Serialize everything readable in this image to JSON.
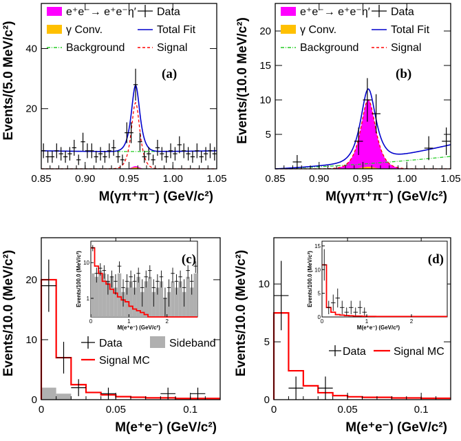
{
  "chart_data": [
    {
      "panel": "a",
      "type": "scatter",
      "panel_label": "(a)",
      "xlabel": "M(γπ⁺π⁻) (GeV/c²)",
      "ylabel": "Events/(5.0 MeV/c²)",
      "xlim": [
        0.85,
        1.05
      ],
      "ylim": [
        0,
        55
      ],
      "xticks": [
        "0.85",
        "0.90",
        "0.95",
        "1.00",
        "1.05"
      ],
      "yticks": [
        "20",
        "40"
      ],
      "legend": [
        "e⁺e⁻→ e⁺e⁻η′",
        "γ Conv.",
        "Background",
        "Data",
        "Total Fit",
        "Signal"
      ],
      "series": [
        {
          "name": "Data",
          "kind": "points",
          "x": [
            0.8525,
            0.8575,
            0.8625,
            0.8675,
            0.8725,
            0.8775,
            0.8825,
            0.8875,
            0.8925,
            0.8975,
            0.9025,
            0.9075,
            0.9125,
            0.9175,
            0.9225,
            0.9275,
            0.9325,
            0.9375,
            0.9425,
            0.9475,
            0.9525,
            0.9575,
            0.9625,
            0.9675,
            0.9725,
            0.9775,
            0.9825,
            0.9875,
            0.9925,
            0.9975,
            1.0025,
            1.0075,
            1.0125,
            1.0175,
            1.0225,
            1.0275,
            1.0325,
            1.0375,
            1.0425,
            1.0475
          ],
          "y": [
            6,
            4,
            4,
            6,
            5,
            4,
            5,
            7,
            3,
            9,
            6,
            6,
            4,
            5,
            4,
            6,
            7,
            4,
            3,
            12,
            12,
            28,
            9,
            4,
            5,
            3,
            7,
            5,
            4,
            6,
            5,
            8,
            6,
            5,
            4,
            6,
            4,
            5,
            6,
            5
          ]
        },
        {
          "name": "Total Fit",
          "kind": "curve",
          "peak_mean": 0.9575,
          "peak_height": 22,
          "peak_width": 0.004,
          "background": [
            6.0,
            5.5,
            6.0
          ]
        },
        {
          "name": "Signal",
          "kind": "curve",
          "peak_mean": 0.9575,
          "peak_height": 22,
          "peak_width": 0.004
        },
        {
          "name": "Background",
          "kind": "curve",
          "background": [
            6.0,
            5.5,
            6.0
          ]
        },
        {
          "name": "e⁺e⁻→ e⁺e⁻η′",
          "kind": "fill",
          "peak_mean": 0.9575,
          "peak_height": 0.6,
          "peak_width": 0.004
        },
        {
          "name": "γ Conv.",
          "kind": "fill",
          "peak_mean": 0.9575,
          "peak_height": 0.5,
          "peak_width": 0.004
        }
      ]
    },
    {
      "panel": "b",
      "type": "scatter",
      "panel_label": "(b)",
      "xlabel": "M(γγπ⁺π⁻) (GeV/c²)",
      "ylabel": "Events/(10.0 MeV/c²)",
      "xlim": [
        0.85,
        1.05
      ],
      "ylim": [
        0,
        24
      ],
      "xticks": [
        "0.85",
        "0.90",
        "0.95",
        "1.00",
        "1.05"
      ],
      "yticks": [
        "5",
        "10",
        "15",
        "20"
      ],
      "legend": [
        "e⁺e⁻→ e⁺e⁻η′",
        "γ Conv.",
        "Background",
        "Data",
        "Total Fit",
        "Signal"
      ],
      "series": [
        {
          "name": "Data",
          "kind": "points",
          "x": [
            0.875,
            0.945,
            0.955,
            0.965,
            1.025,
            1.045
          ],
          "y": [
            1,
            4,
            10,
            8,
            3,
            4
          ],
          "xerr": [
            0.005,
            0.005,
            0.005,
            0.005,
            0.005,
            0.005
          ]
        },
        {
          "name": "Total Fit",
          "kind": "curve",
          "peak_mean": 0.956,
          "peak_height": 10.3,
          "peak_width": 0.007,
          "background": [
            0.0,
            0.6,
            3.5
          ]
        },
        {
          "name": "Signal",
          "kind": "curve",
          "peak_mean": 0.956,
          "peak_height": 10.0,
          "peak_width": 0.007
        },
        {
          "name": "Background",
          "kind": "curve",
          "background": [
            0.0,
            0.5,
            1.8
          ]
        },
        {
          "name": "e⁺e⁻→ e⁺e⁻η′",
          "kind": "fill",
          "peak_mean": 0.956,
          "peak_height": 10.0,
          "peak_width": 0.007
        },
        {
          "name": "γ Conv.",
          "kind": "fill",
          "peak_mean": 0.956,
          "peak_height": 0.3,
          "peak_width": 0.007
        }
      ]
    },
    {
      "panel": "c",
      "type": "bar",
      "panel_label": "(c)",
      "xlabel": "M(e⁺e⁻) (GeV/c²)",
      "ylabel": "Events/10.0 (MeV/c²)",
      "xlim": [
        0,
        0.12
      ],
      "ylim": [
        0,
        27
      ],
      "xticks": [
        "0",
        "0.05",
        "0.1"
      ],
      "yticks": [
        "0",
        "10",
        "20"
      ],
      "legend": [
        "Data",
        "Sideband",
        "Signal MC"
      ],
      "bin_edges": [
        0,
        0.01,
        0.02,
        0.03,
        0.04,
        0.05,
        0.06,
        0.07,
        0.08,
        0.09,
        0.1,
        0.11,
        0.12
      ],
      "series": [
        {
          "name": "Data",
          "kind": "points",
          "x": [
            0.005,
            0.015,
            0.025,
            0.045,
            0.085,
            0.105
          ],
          "y": [
            19,
            7,
            2,
            1,
            1,
            1
          ],
          "xerr": [
            0.005,
            0.005,
            0.005,
            0.005,
            0.005,
            0.005
          ]
        },
        {
          "name": "Signal MC",
          "kind": "step",
          "values": [
            20,
            7,
            2.5,
            1.2,
            0.8,
            0.5,
            0.4,
            0.3,
            0.3,
            0.2,
            0.2,
            0.2
          ]
        },
        {
          "name": "Sideband",
          "kind": "fill",
          "values": [
            2,
            1,
            0,
            0,
            0,
            0,
            0,
            0,
            0,
            0,
            0,
            0
          ]
        }
      ],
      "inset": {
        "xlabel": "M(e⁺e⁻) (GeV/c²)",
        "ylabel": "Events/100.0 (MeV/c²)",
        "xlim": [
          0,
          2.8
        ],
        "log_y": true,
        "yticks": [
          "1",
          "10"
        ],
        "xticks": [
          "0",
          "1",
          "2"
        ],
        "data_x": [
          0.05,
          0.15,
          0.25,
          0.35,
          0.45,
          0.55,
          0.65,
          0.75,
          0.85,
          0.95,
          1.05,
          1.15,
          1.25,
          1.35,
          1.45,
          1.55,
          1.65,
          1.75,
          1.85,
          1.95,
          2.05,
          2.15,
          2.25,
          2.35,
          2.45,
          2.55,
          2.65,
          2.75
        ],
        "data_y": [
          26,
          5,
          7,
          6,
          3,
          4,
          3,
          8,
          2,
          3,
          4,
          3,
          5,
          2,
          4,
          6,
          2,
          3,
          4,
          1,
          2,
          5,
          3,
          4,
          2,
          6,
          3,
          8
        ],
        "mc": [
          26,
          8,
          5,
          3,
          2.5,
          1.8,
          1.4,
          1.1,
          0.9,
          0.8,
          0.6,
          0.5,
          0.45,
          0.4,
          0.35,
          0.3,
          0.28,
          0.25,
          0.22,
          0.2,
          0.2,
          0.18,
          0.16,
          0.15,
          0.14,
          0.13,
          0.12,
          0.12
        ],
        "sideband": [
          5,
          4,
          6,
          5,
          3,
          4,
          2,
          5,
          1.5,
          2,
          3,
          2,
          4,
          1.5,
          3,
          4,
          1.5,
          2,
          3,
          1,
          1.5,
          3,
          2,
          3,
          1.5,
          4,
          2,
          5
        ]
      }
    },
    {
      "panel": "d",
      "type": "bar",
      "panel_label": "(d)",
      "xlabel": "M(e⁺e⁻) (GeV/c²)",
      "ylabel": "Events/10.0 (MeV/c²)",
      "xlim": [
        0,
        0.12
      ],
      "ylim": [
        0,
        14
      ],
      "xticks": [
        "0",
        "0.05",
        "0.1"
      ],
      "yticks": [
        "0",
        "5",
        "10"
      ],
      "legend": [
        "Data",
        "Signal MC"
      ],
      "bin_edges": [
        0,
        0.01,
        0.02,
        0.03,
        0.04,
        0.05,
        0.06,
        0.07,
        0.08,
        0.09,
        0.1,
        0.11,
        0.12
      ],
      "series": [
        {
          "name": "Data",
          "kind": "points",
          "x": [
            0.005,
            0.015,
            0.035
          ],
          "y": [
            9,
            1,
            1
          ],
          "xerr": [
            0.005,
            0.005,
            0.005
          ]
        },
        {
          "name": "Signal MC",
          "kind": "step",
          "values": [
            7.5,
            2.5,
            1.2,
            0.6,
            0.35,
            0.25,
            0.2,
            0.2,
            0.15,
            0.15,
            0.12,
            0.12
          ]
        }
      ],
      "inset": {
        "xlabel": "M(e⁺e⁻) (GeV/c²)",
        "ylabel": "Events/100.0 (MeV/c²)",
        "xlim": [
          0,
          2.8
        ],
        "log_y": false,
        "ylim": [
          0,
          16
        ],
        "yticks": [
          "0",
          "5",
          "10",
          "15"
        ],
        "xticks": [
          "0",
          "1",
          "2"
        ],
        "data_x": [
          0.05,
          0.15,
          0.25,
          0.35,
          0.45,
          0.55,
          0.65,
          0.75,
          0.85,
          0.95
        ],
        "data_y": [
          11,
          2,
          3,
          4,
          2,
          1,
          2,
          1,
          2,
          1
        ],
        "mc": [
          11,
          2,
          1,
          0.5,
          0.4,
          0.3,
          0.25,
          0.2,
          0.2,
          0.15,
          0.12,
          0.12,
          0.1,
          0.1,
          0.1,
          0.1,
          0.1,
          0.1,
          0.1,
          0.1,
          0.1,
          0.1,
          0.1,
          0.1,
          0.1,
          0.1,
          0.1,
          0.1
        ]
      }
    }
  ],
  "colors": {
    "signal_fill": "#ff00ff",
    "conv_fill": "#ffc000",
    "total_fit": "#0000cc",
    "signal_curve": "#ff0000",
    "background_curve": "#22cc22",
    "signal_mc": "#ff0000",
    "sideband": "#b0b0b0"
  }
}
